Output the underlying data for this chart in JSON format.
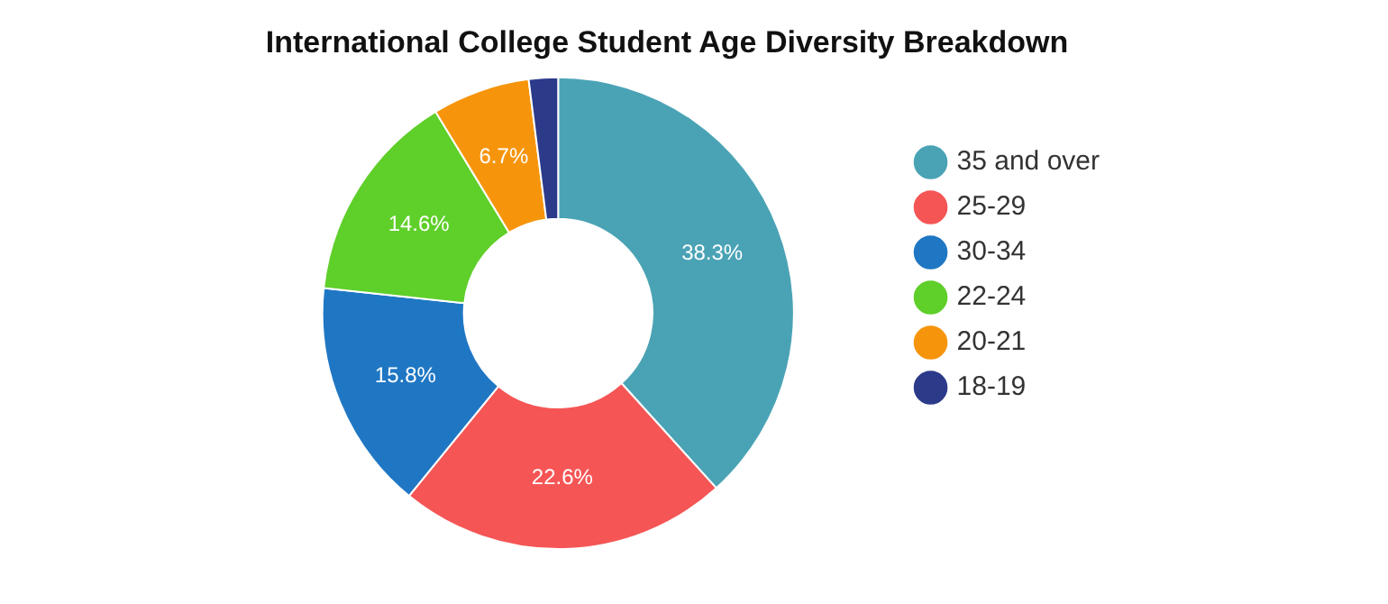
{
  "chart_data": {
    "type": "donut",
    "title": "International College Student Age Diversity Breakdown",
    "categories": [
      "35 and over",
      "25-29",
      "30-34",
      "22-24",
      "20-21",
      "18-19"
    ],
    "values": [
      38.3,
      22.6,
      15.8,
      14.6,
      6.7,
      2.0
    ],
    "value_labels": [
      "38.3%",
      "22.6%",
      "15.8%",
      "14.6%",
      "6.7%",
      null
    ],
    "colors": [
      "#4aa3b5",
      "#f55555",
      "#1f77c4",
      "#5fcf2a",
      "#f6950c",
      "#2c3a8a"
    ],
    "legend": "right"
  }
}
